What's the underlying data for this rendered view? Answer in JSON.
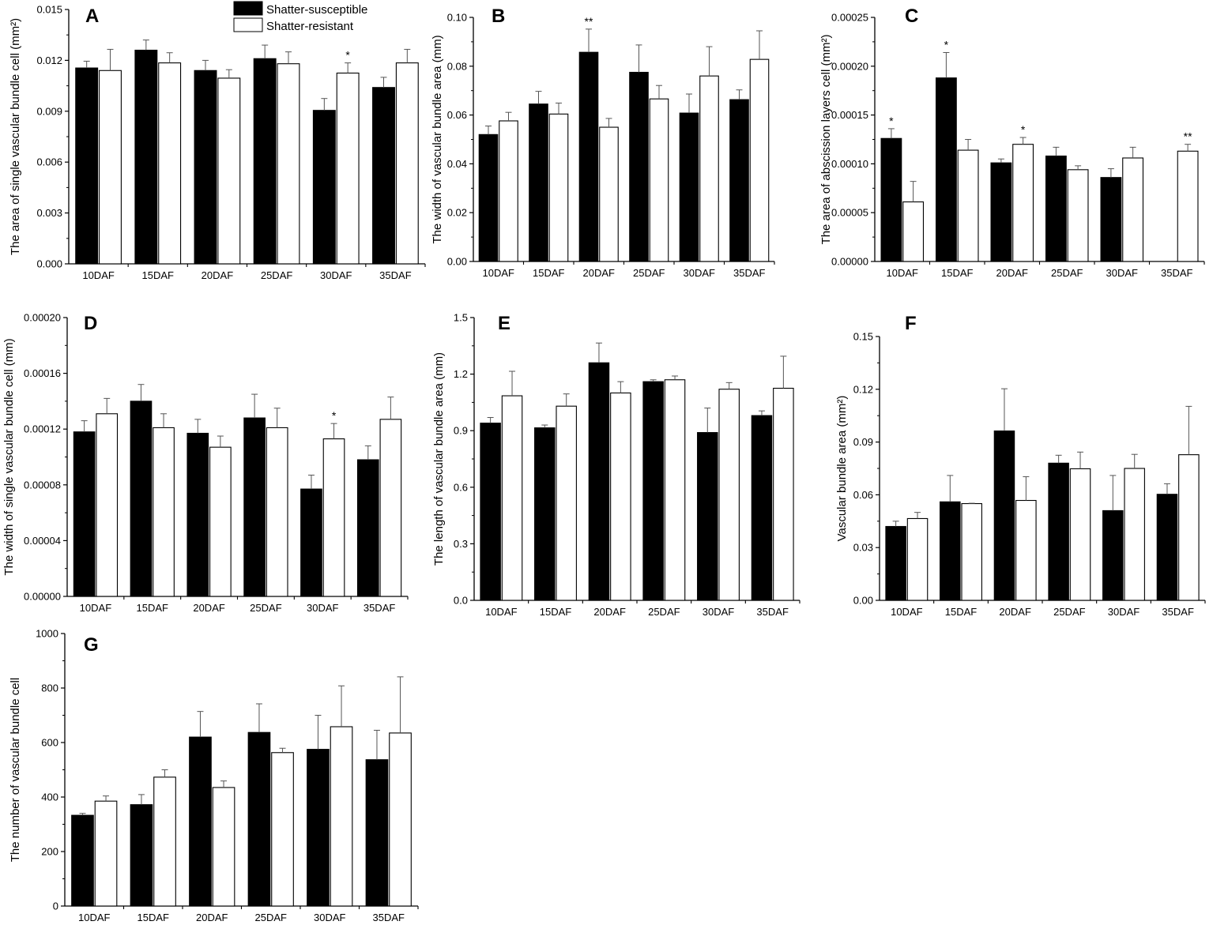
{
  "legend": {
    "susceptible_label": "Shatter-susceptible",
    "resistant_label": "Shatter-resistant",
    "susceptible_color": "#000000",
    "resistant_color": "#ffffff"
  },
  "chart_data": [
    {
      "panel": "A",
      "type": "bar",
      "ylabel": "The area of single vascular bundle cell (mm²)",
      "ylim": [
        0,
        0.015
      ],
      "yticks": [
        "0.000",
        "0.003",
        "0.006",
        "0.009",
        "0.012",
        "0.015"
      ],
      "categories": [
        "10DAF",
        "15DAF",
        "20DAF",
        "25DAF",
        "30DAF",
        "35DAF"
      ],
      "series": [
        {
          "name": "Shatter-susceptible",
          "values": [
            0.01155,
            0.0126,
            0.0114,
            0.0121,
            0.00905,
            0.0104
          ],
          "errors": [
            0.0004,
            0.0006,
            0.0006,
            0.0008,
            0.0007,
            0.0006
          ]
        },
        {
          "name": "Shatter-resistant",
          "values": [
            0.0114,
            0.01185,
            0.01095,
            0.0118,
            0.01125,
            0.01185
          ],
          "errors": [
            0.00125,
            0.0006,
            0.0005,
            0.0007,
            0.0006,
            0.0008
          ]
        }
      ],
      "significance": [
        {
          "category": 4,
          "series": 1,
          "label": "*"
        }
      ]
    },
    {
      "panel": "B",
      "type": "bar",
      "ylabel": "The width of vascular bundle area (mm)",
      "ylim": [
        0,
        0.1
      ],
      "yticks": [
        "0.00",
        "0.02",
        "0.04",
        "0.06",
        "0.08",
        "0.10"
      ],
      "categories": [
        "10DAF",
        "15DAF",
        "20DAF",
        "25DAF",
        "30DAF",
        "35DAF"
      ],
      "series": [
        {
          "name": "Shatter-susceptible",
          "values": [
            0.052,
            0.0645,
            0.0857,
            0.0775,
            0.0608,
            0.0663
          ],
          "errors": [
            0.0035,
            0.0052,
            0.0095,
            0.0112,
            0.0078,
            0.004
          ]
        },
        {
          "name": "Shatter-resistant",
          "values": [
            0.0576,
            0.0604,
            0.055,
            0.0666,
            0.076,
            0.0828
          ],
          "errors": [
            0.0035,
            0.0045,
            0.0036,
            0.0055,
            0.012,
            0.0117
          ]
        }
      ],
      "significance": [
        {
          "category": 2,
          "series": 0,
          "label": "**"
        }
      ]
    },
    {
      "panel": "C",
      "type": "bar",
      "ylabel": "The area of abscission layers cell (mm²)",
      "ylim": [
        0,
        0.00025
      ],
      "yticks": [
        "0.00000",
        "0.00005",
        "0.00010",
        "0.00015",
        "0.00020",
        "0.00025"
      ],
      "categories": [
        "10DAF",
        "15DAF",
        "20DAF",
        "25DAF",
        "30DAF",
        "35DAF"
      ],
      "series": [
        {
          "name": "Shatter-susceptible",
          "values": [
            0.000126,
            0.000188,
            0.000101,
            0.000108,
            8.6e-05,
            null
          ],
          "errors": [
            1e-05,
            2.6e-05,
            4e-06,
            9e-06,
            9e-06,
            null
          ]
        },
        {
          "name": "Shatter-resistant",
          "values": [
            6.1e-05,
            0.000114,
            0.00012,
            9.4e-05,
            0.000106,
            0.000113
          ],
          "errors": [
            2.1e-05,
            1.1e-05,
            7e-06,
            4e-06,
            1.1e-05,
            7e-06
          ]
        }
      ],
      "significance": [
        {
          "category": 0,
          "series": 0,
          "label": "*"
        },
        {
          "category": 1,
          "series": 0,
          "label": "*"
        },
        {
          "category": 2,
          "series": 1,
          "label": "*"
        },
        {
          "category": 5,
          "series": 1,
          "label": "**"
        }
      ]
    },
    {
      "panel": "D",
      "type": "bar",
      "ylabel": "The width of single vascular bundle cell (mm)",
      "ylim": [
        0,
        0.0002
      ],
      "yticks": [
        "0.00000",
        "0.00004",
        "0.00008",
        "0.00012",
        "0.00016",
        "0.00020"
      ],
      "categories": [
        "10DAF",
        "15DAF",
        "20DAF",
        "25DAF",
        "30DAF",
        "35DAF"
      ],
      "series": [
        {
          "name": "Shatter-susceptible",
          "values": [
            0.000118,
            0.00014,
            0.000117,
            0.000128,
            7.7e-05,
            9.8e-05
          ],
          "errors": [
            8e-06,
            1.2e-05,
            1e-05,
            1.7e-05,
            1e-05,
            1e-05
          ]
        },
        {
          "name": "Shatter-resistant",
          "values": [
            0.000131,
            0.000121,
            0.000107,
            0.000121,
            0.000113,
            0.000127
          ],
          "errors": [
            1.1e-05,
            1e-05,
            8e-06,
            1.4e-05,
            1.1e-05,
            1.6e-05
          ]
        }
      ],
      "significance": [
        {
          "category": 4,
          "series": 1,
          "label": "*"
        }
      ]
    },
    {
      "panel": "E",
      "type": "bar",
      "ylabel": "The length of vascular bundle area (mm)",
      "ylim": [
        0,
        1.5
      ],
      "yticks": [
        "0.0",
        "0.3",
        "0.6",
        "0.9",
        "1.2",
        "1.5"
      ],
      "categories": [
        "10DAF",
        "15DAF",
        "20DAF",
        "25DAF",
        "30DAF",
        "35DAF"
      ],
      "series": [
        {
          "name": "Shatter-susceptible",
          "values": [
            0.94,
            0.915,
            1.26,
            1.16,
            0.89,
            0.98
          ],
          "errors": [
            0.03,
            0.015,
            0.105,
            0.01,
            0.13,
            0.025
          ]
        },
        {
          "name": "Shatter-resistant",
          "values": [
            1.085,
            1.03,
            1.1,
            1.17,
            1.12,
            1.125
          ],
          "errors": [
            0.13,
            0.065,
            0.06,
            0.02,
            0.035,
            0.17
          ]
        }
      ],
      "significance": []
    },
    {
      "panel": "F",
      "type": "bar",
      "ylabel": "Vascular bundle area (mm²)",
      "ylim": [
        0,
        0.15
      ],
      "yticks": [
        "0.00",
        "0.03",
        "0.06",
        "0.09",
        "0.12",
        "0.15"
      ],
      "categories": [
        "10DAF",
        "15DAF",
        "20DAF",
        "25DAF",
        "30DAF",
        "35DAF"
      ],
      "series": [
        {
          "name": "Shatter-susceptible",
          "values": [
            0.042,
            0.056,
            0.0963,
            0.078,
            0.051,
            0.0603
          ],
          "errors": [
            0.003,
            0.015,
            0.024,
            0.0045,
            0.02,
            0.006
          ]
        },
        {
          "name": "Shatter-resistant",
          "values": [
            0.0465,
            0.055,
            0.0568,
            0.0748,
            0.075,
            0.0828
          ],
          "errors": [
            0.0035,
            0.0002,
            0.0135,
            0.0095,
            0.008,
            0.0275
          ]
        }
      ],
      "significance": []
    },
    {
      "panel": "G",
      "type": "bar",
      "ylabel": "The number of vascular bundle cell",
      "ylim": [
        0,
        1000
      ],
      "yticks": [
        "0",
        "200",
        "400",
        "600",
        "800",
        "1000"
      ],
      "categories": [
        "10DAF",
        "15DAF",
        "20DAF",
        "25DAF",
        "30DAF",
        "35DAF"
      ],
      "series": [
        {
          "name": "Shatter-susceptible",
          "values": [
            333,
            372,
            620,
            637,
            575,
            537
          ],
          "errors": [
            7,
            37,
            94,
            105,
            125,
            108
          ]
        },
        {
          "name": "Shatter-resistant",
          "values": [
            385,
            473,
            435,
            563,
            658,
            635
          ],
          "errors": [
            19,
            27,
            24,
            16,
            150,
            206
          ]
        }
      ],
      "significance": []
    }
  ]
}
